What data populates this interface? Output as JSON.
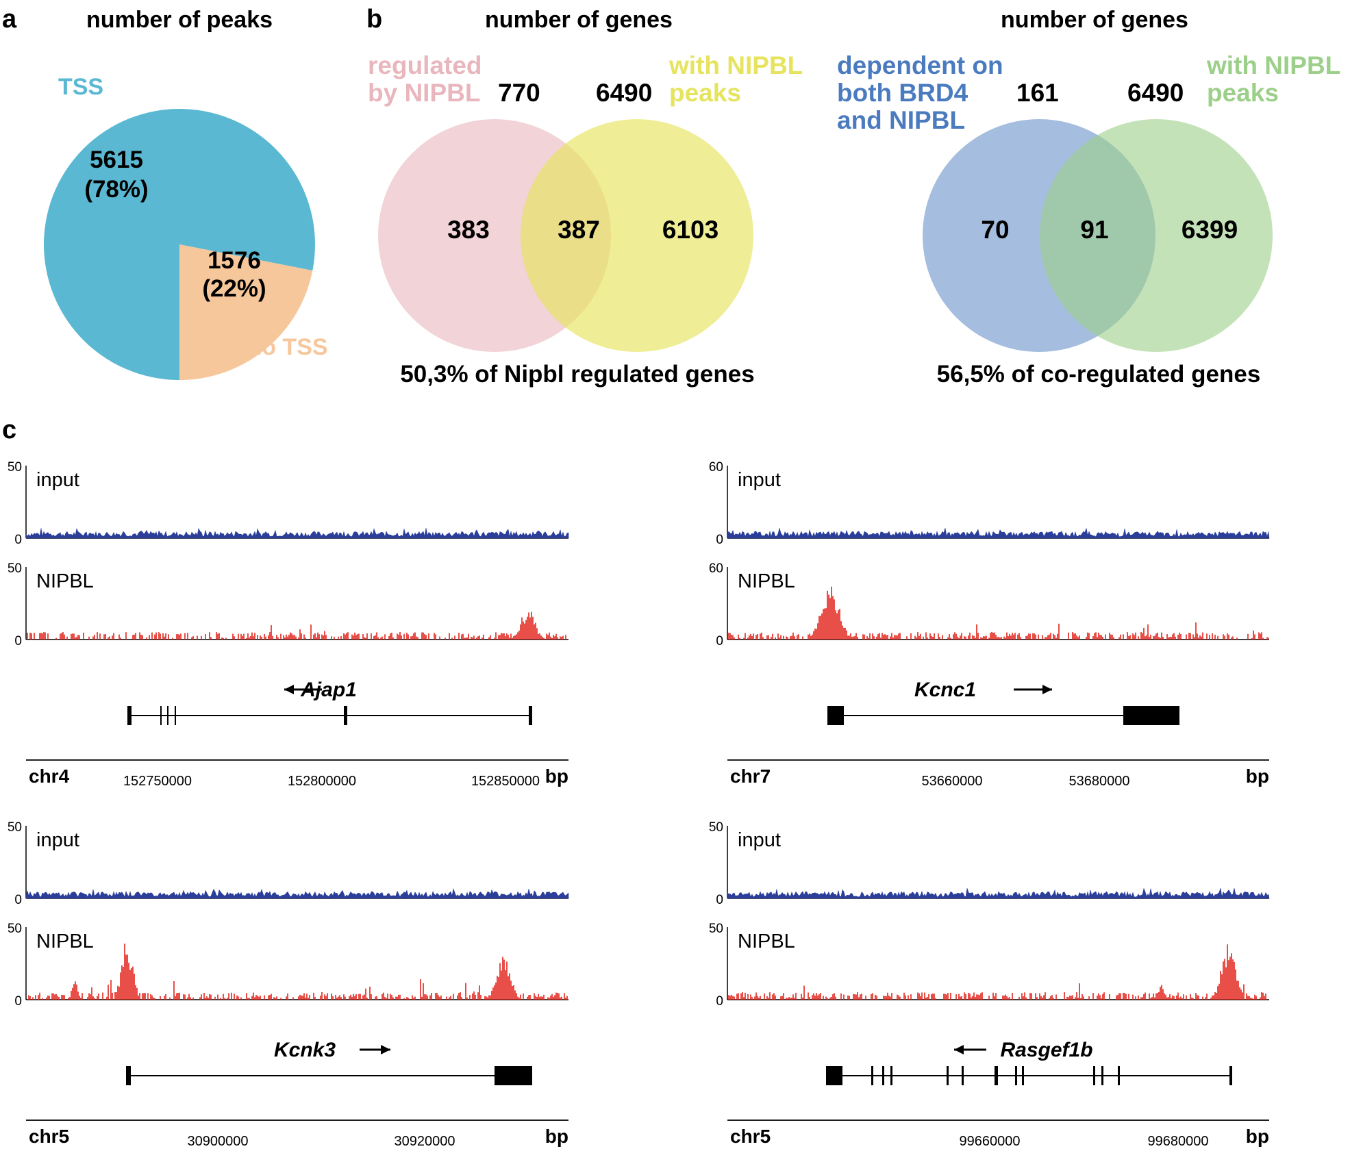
{
  "colors": {
    "tss": "#5bb8d2",
    "no_tss": "#f7c79c",
    "regulated": "#e9b6bd",
    "nipbl_yellow": "#e6e45e",
    "dependent_blue": "#4b7bbf",
    "nipbl_green": "#9ccf89",
    "input_track": "#2b3f9a",
    "nipbl_track": "#e2231a"
  },
  "panel_a": {
    "letter": "a",
    "title": "number of peaks",
    "tss_label": "TSS",
    "no_tss_label": "no TSS",
    "tss_value": "5615",
    "tss_pct": "(78%)",
    "no_tss_value": "1576",
    "no_tss_pct": "(22%)",
    "chart_data": {
      "type": "pie",
      "title": "number of peaks",
      "labels": [
        "TSS",
        "no TSS"
      ],
      "values": [
        5615,
        1576
      ],
      "percentages": [
        78,
        22
      ]
    }
  },
  "panel_b": {
    "letter": "b",
    "venn1": {
      "title": "number of genes",
      "left_label_1": "regulated",
      "left_label_2": "by NIPBL",
      "left_total": "770",
      "right_total": "6490",
      "right_label_1": "with NIPBL",
      "right_label_2": "peaks",
      "left_only": "383",
      "overlap": "387",
      "right_only": "6103",
      "footer": "50,3% of Nipbl regulated genes"
    },
    "venn2": {
      "title": "number of genes",
      "left_label_1": "dependent on",
      "left_label_2": "both BRD4",
      "left_label_3": "and NIPBL",
      "left_total": "161",
      "right_total": "6490",
      "right_label_1": "with NIPBL",
      "right_label_2": "peaks",
      "left_only": "70",
      "overlap": "91",
      "right_only": "6399",
      "footer": "56,5% of co-regulated genes"
    }
  },
  "panel_c": {
    "letter": "c",
    "tracks": [
      {
        "input_label": "input",
        "nipbl_label": "NIPBL",
        "input_max": "50",
        "input_min": "0",
        "nipbl_max": "50",
        "nipbl_min": "0",
        "gene": "Ajap1",
        "arrow": "←",
        "chrom": "chr4",
        "unit": "bp",
        "ticks": [
          "152750000",
          "152800000",
          "152850000"
        ]
      },
      {
        "input_label": "input",
        "nipbl_label": "NIPBL",
        "input_max": "60",
        "input_min": "0",
        "nipbl_max": "60",
        "nipbl_min": "0",
        "gene": "Kcnc1",
        "arrow": "→",
        "chrom": "chr7",
        "unit": "bp",
        "ticks": [
          "53660000",
          "53680000"
        ]
      },
      {
        "input_label": "input",
        "nipbl_label": "NIPBL",
        "input_max": "50",
        "input_min": "0",
        "nipbl_max": "50",
        "nipbl_min": "0",
        "gene": "Kcnk3",
        "arrow": "→",
        "chrom": "chr5",
        "unit": "bp",
        "ticks": [
          "30900000",
          "30920000"
        ]
      },
      {
        "input_label": "input",
        "nipbl_label": "NIPBL",
        "input_max": "50",
        "input_min": "0",
        "nipbl_max": "50",
        "nipbl_min": "0",
        "gene": "Rasgef1b",
        "arrow": "←",
        "chrom": "chr5",
        "unit": "bp",
        "ticks": [
          "99660000",
          "99680000"
        ]
      }
    ]
  }
}
